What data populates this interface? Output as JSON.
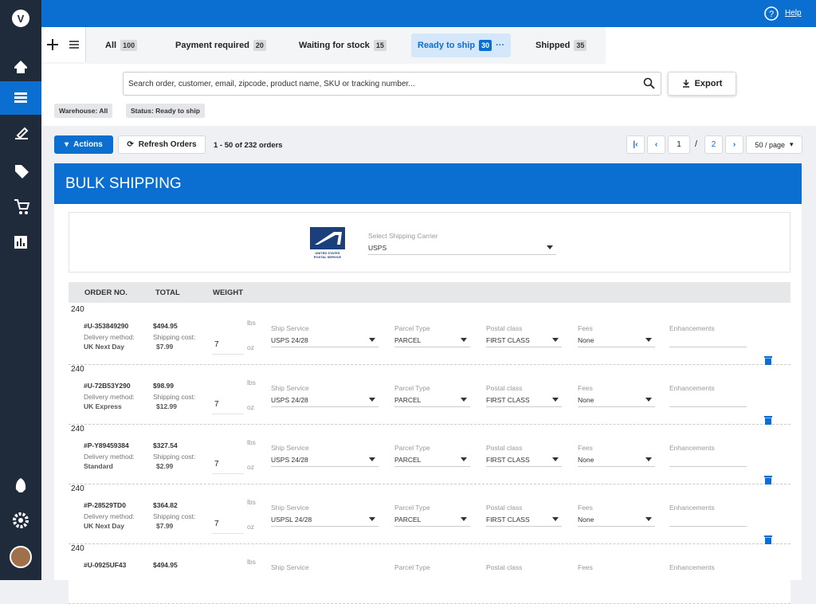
{
  "help": "Help",
  "tabs": [
    {
      "label": "All",
      "count": 100
    },
    {
      "label": "Payment required",
      "count": 20
    },
    {
      "label": "Waiting for stock",
      "count": 15
    },
    {
      "label": "Ready to ship",
      "count": 30
    },
    {
      "label": "Shipped",
      "count": 35
    }
  ],
  "search_placeholder": "Search order, customer, email, zipcode, product name, SKU or tracking number...",
  "export": "Export",
  "filters": [
    "Warehouse: All",
    "Status: Ready to ship"
  ],
  "actions": "Actions",
  "refresh": "Refresh Orders",
  "range": "1 - 50 of 232 orders",
  "pagination": {
    "current": 1,
    "separator": "/",
    "next_page": 2,
    "per_page": "50 / page"
  },
  "panel_title": "BULK SHIPPING",
  "carrier": {
    "logo_text": "UNITED STATES POSTAL SERVICE",
    "label": "Select Shipping Carrier",
    "value": "USPS"
  },
  "columns": [
    "ORDER NO.",
    "TOTAL",
    "WEIGHT"
  ],
  "labels": {
    "delivery": "Delivery method:",
    "shipping": "Shipping cost:",
    "lbs": "lbs",
    "oz": "oz",
    "fields": [
      "Ship Service",
      "Parcel Type",
      "Postal class",
      "Fees",
      "Enhancements"
    ]
  },
  "orders": [
    {
      "id": "#U-353849290",
      "total": "$494.95",
      "delivery": "UK Next Day",
      "shipping": "$7.99",
      "lbs": 240,
      "oz": 7,
      "fields": [
        "USPS 24/28",
        "PARCEL",
        "FIRST CLASS",
        "None"
      ]
    },
    {
      "id": "#U-72B53Y290",
      "total": "$98.99",
      "delivery": "UK Express",
      "shipping": "$12.99",
      "lbs": 240,
      "oz": 7,
      "fields": [
        "USPS 24/28",
        "PARCEL",
        "FIRST CLASS",
        "None"
      ]
    },
    {
      "id": "#P-Y89459384",
      "total": "$327.54",
      "delivery": "Standard",
      "shipping": "$2.99",
      "lbs": 240,
      "oz": 7,
      "fields": [
        "USPS 24/28",
        "PARCEL",
        "FIRST CLASS",
        "None"
      ]
    },
    {
      "id": "#P-28529TD0",
      "total": "$364.82",
      "delivery": "UK Next Day",
      "shipping": "$7.99",
      "lbs": 240,
      "oz": 7,
      "fields": [
        "USPSL 24/28",
        "PARCEL",
        "FIRST CLASS",
        "None"
      ]
    },
    {
      "id": "#U-0925UF43",
      "total": "$494.95",
      "lbs": 240
    }
  ]
}
